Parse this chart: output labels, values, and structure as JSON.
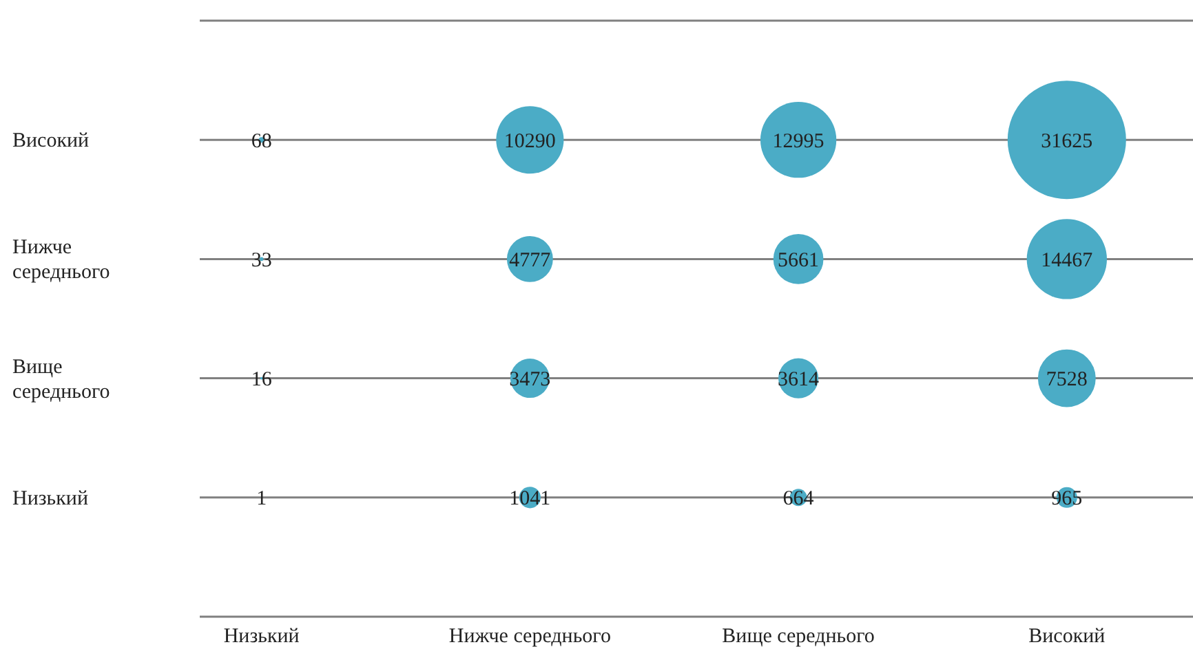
{
  "chart_data": {
    "type": "heatmap",
    "categories": [
      "Низький",
      "Нижче середнього",
      "Вище середнього",
      "Високий"
    ],
    "y_categories": [
      "Високий",
      "Нижче середнього",
      "Вище середнього",
      "Низький"
    ],
    "cells": [
      [
        68,
        10290,
        12995,
        31625
      ],
      [
        33,
        4777,
        5661,
        14467
      ],
      [
        16,
        3473,
        3614,
        7528
      ],
      [
        1,
        1041,
        664,
        965
      ]
    ],
    "color": "#4bacc6",
    "data_labels": true,
    "grid": "y"
  }
}
